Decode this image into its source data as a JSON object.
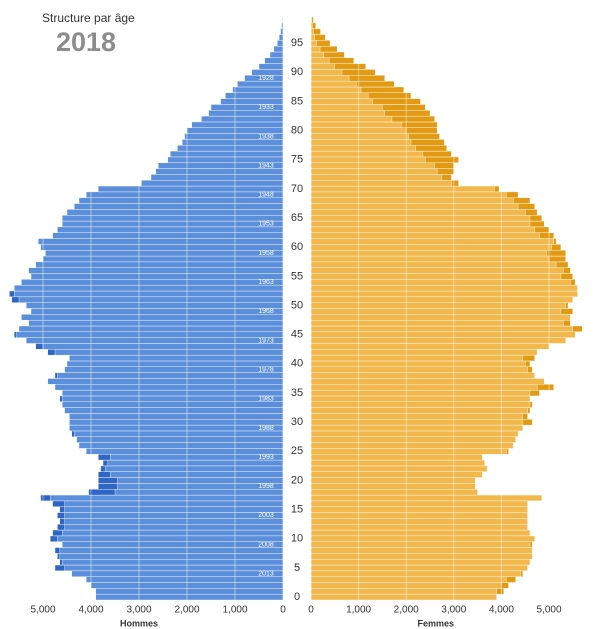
{
  "chart_data": {
    "type": "pyramid",
    "title": "Structure par âge",
    "subtitle": "2018",
    "categories": [
      0,
      1,
      2,
      3,
      4,
      5,
      6,
      7,
      8,
      9,
      10,
      11,
      12,
      13,
      14,
      15,
      16,
      17,
      18,
      19,
      20,
      21,
      22,
      23,
      24,
      25,
      26,
      27,
      28,
      29,
      30,
      31,
      32,
      33,
      34,
      35,
      36,
      37,
      38,
      39,
      40,
      41,
      42,
      43,
      44,
      45,
      46,
      47,
      48,
      49,
      50,
      51,
      52,
      53,
      54,
      55,
      56,
      57,
      58,
      59,
      60,
      61,
      62,
      63,
      64,
      65,
      66,
      67,
      68,
      69,
      70,
      71,
      72,
      73,
      74,
      75,
      76,
      77,
      78,
      79,
      80,
      81,
      82,
      83,
      84,
      85,
      86,
      87,
      88,
      89,
      90,
      91,
      92,
      93,
      94,
      95,
      96,
      97,
      98,
      99
    ],
    "series": [
      {
        "name": "Hommes",
        "color": "#5b8fdb",
        "dark_color": "#2f66c6",
        "values": [
          3900,
          3900,
          4000,
          4100,
          4400,
          4750,
          4650,
          4700,
          4750,
          4600,
          4850,
          4800,
          4700,
          4650,
          4700,
          4650,
          4800,
          5050,
          4050,
          3850,
          3850,
          3850,
          3800,
          3750,
          3850,
          4100,
          4250,
          4300,
          4400,
          4450,
          4450,
          4450,
          4550,
          4600,
          4650,
          4600,
          4750,
          4900,
          4750,
          4550,
          4500,
          4450,
          4900,
          5150,
          5350,
          5600,
          5500,
          5300,
          5450,
          5250,
          5350,
          5650,
          5700,
          5600,
          5450,
          5250,
          5300,
          5150,
          5000,
          4950,
          5050,
          5100,
          4800,
          4700,
          4600,
          4600,
          4500,
          4350,
          4250,
          4100,
          3850,
          2950,
          2750,
          2650,
          2600,
          2400,
          2350,
          2200,
          2100,
          2050,
          2000,
          1900,
          1700,
          1550,
          1500,
          1300,
          1200,
          1050,
          950,
          800,
          650,
          500,
          380,
          270,
          190,
          120,
          80,
          50,
          30,
          15
        ]
      },
      {
        "name": "Femmes",
        "color": "#f2b84b",
        "dark_color": "#e39a13",
        "values": [
          3900,
          4050,
          4150,
          4300,
          4450,
          4550,
          4600,
          4650,
          4650,
          4650,
          4700,
          4600,
          4550,
          4550,
          4550,
          4550,
          4550,
          4850,
          3500,
          3450,
          3450,
          3600,
          3700,
          3650,
          3600,
          4150,
          4250,
          4300,
          4350,
          4450,
          4650,
          4550,
          4600,
          4650,
          4600,
          4800,
          5100,
          4900,
          4700,
          4650,
          4600,
          4700,
          4750,
          5000,
          5350,
          5550,
          5700,
          5450,
          5450,
          5500,
          5400,
          5500,
          5600,
          5600,
          5550,
          5500,
          5450,
          5400,
          5350,
          5350,
          5250,
          5150,
          5100,
          5000,
          4900,
          4850,
          4750,
          4700,
          4600,
          4350,
          3950,
          3100,
          2950,
          3000,
          3000,
          3100,
          2950,
          2850,
          2800,
          2700,
          2650,
          2650,
          2600,
          2500,
          2400,
          2300,
          2100,
          1950,
          1750,
          1550,
          1350,
          1150,
          900,
          700,
          550,
          400,
          300,
          200,
          100,
          50
        ]
      }
    ],
    "ylim": [
      0,
      100
    ],
    "yticks": [
      0,
      5,
      10,
      15,
      20,
      25,
      30,
      35,
      40,
      45,
      50,
      55,
      60,
      65,
      70,
      75,
      80,
      85,
      90,
      95
    ],
    "xlim": [
      0,
      5000
    ],
    "xticks": [
      0,
      {
        "value": 1000,
        "label": "1,000"
      },
      {
        "value": 2000,
        "label": "2,000"
      },
      {
        "value": 3000,
        "label": "3,000"
      },
      {
        "value": 4000,
        "label": "4,000"
      },
      {
        "value": 5000,
        "label": "5,000"
      }
    ],
    "birth_year_labels": [
      {
        "value": 89,
        "label": "1928"
      },
      {
        "value": 84,
        "label": "1933"
      },
      {
        "value": 79,
        "label": "1938"
      },
      {
        "value": 74,
        "label": "1943"
      },
      {
        "value": 69,
        "label": "1948"
      },
      {
        "value": 64,
        "label": "1953"
      },
      {
        "value": 59,
        "label": "1958"
      },
      {
        "value": 54,
        "label": "1963"
      },
      {
        "value": 49,
        "label": "1968"
      },
      {
        "value": 44,
        "label": "1973"
      },
      {
        "value": 39,
        "label": "1978"
      },
      {
        "value": 34,
        "label": "1983"
      },
      {
        "value": 29,
        "label": "1988"
      },
      {
        "value": 24,
        "label": "1993"
      },
      {
        "value": 19,
        "label": "1998"
      },
      {
        "value": 14,
        "label": "2003"
      },
      {
        "value": 9,
        "label": "2008"
      },
      {
        "value": 4,
        "label": "2013"
      }
    ],
    "grid": true
  }
}
